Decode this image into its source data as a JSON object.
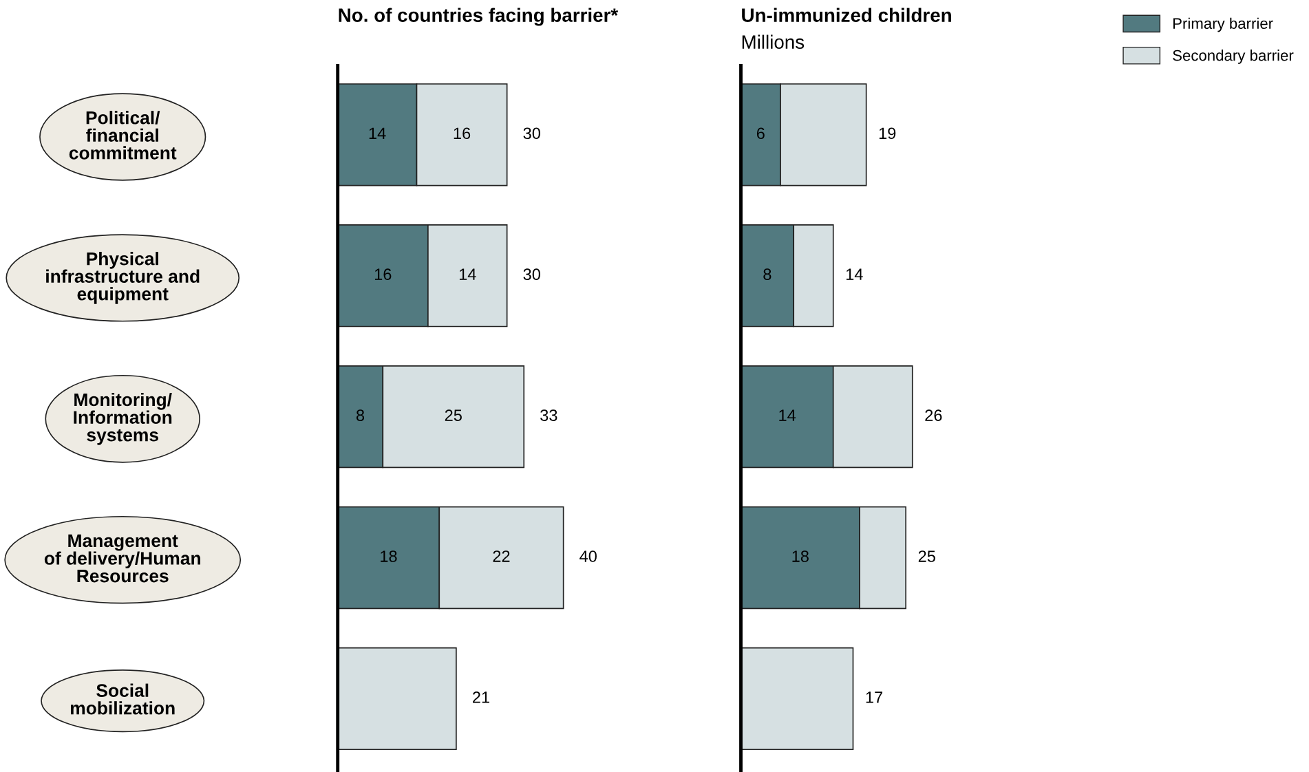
{
  "chart_data": [
    {
      "type": "bar",
      "orientation": "horizontal",
      "stacked": true,
      "title": "No. of countries facing barrier*",
      "categories": [
        "Political/\nfinancial\ncommitment",
        "Physical\ninfrastructure and\nequipment",
        "Monitoring/\nInformation\nsystems",
        "Management\nof delivery/Human\nResources",
        "Social\nmobilization"
      ],
      "series": [
        {
          "color": "#527a80",
          "values": [
            14,
            16,
            8,
            18,
            null
          ],
          "value_labels": [
            "14",
            "16",
            "8",
            "18",
            null
          ]
        },
        {
          "color": "#d6e0e2",
          "values": [
            16,
            14,
            25,
            22,
            21
          ],
          "value_labels": [
            "16",
            "14",
            "25",
            "22",
            null
          ]
        }
      ],
      "totals": [
        "30",
        "30",
        "33",
        "40",
        "21"
      ],
      "grid": false,
      "legend": false
    },
    {
      "type": "bar",
      "orientation": "horizontal",
      "stacked": true,
      "title": "Un-immunized children",
      "subtitle": "Millions",
      "series": [
        {
          "name": "Primary barrier",
          "color": "#527a80",
          "values": [
            6,
            8,
            14,
            18,
            null
          ],
          "value_labels": [
            "6",
            "8",
            "14",
            "18",
            null
          ]
        },
        {
          "name": "Secondary barrier",
          "color": "#d6e0e2",
          "values": [
            13,
            6,
            12,
            7,
            17
          ]
        }
      ],
      "totals": [
        "19",
        "14",
        "26",
        "25",
        "17"
      ],
      "grid": false,
      "legend": "top right"
    }
  ]
}
